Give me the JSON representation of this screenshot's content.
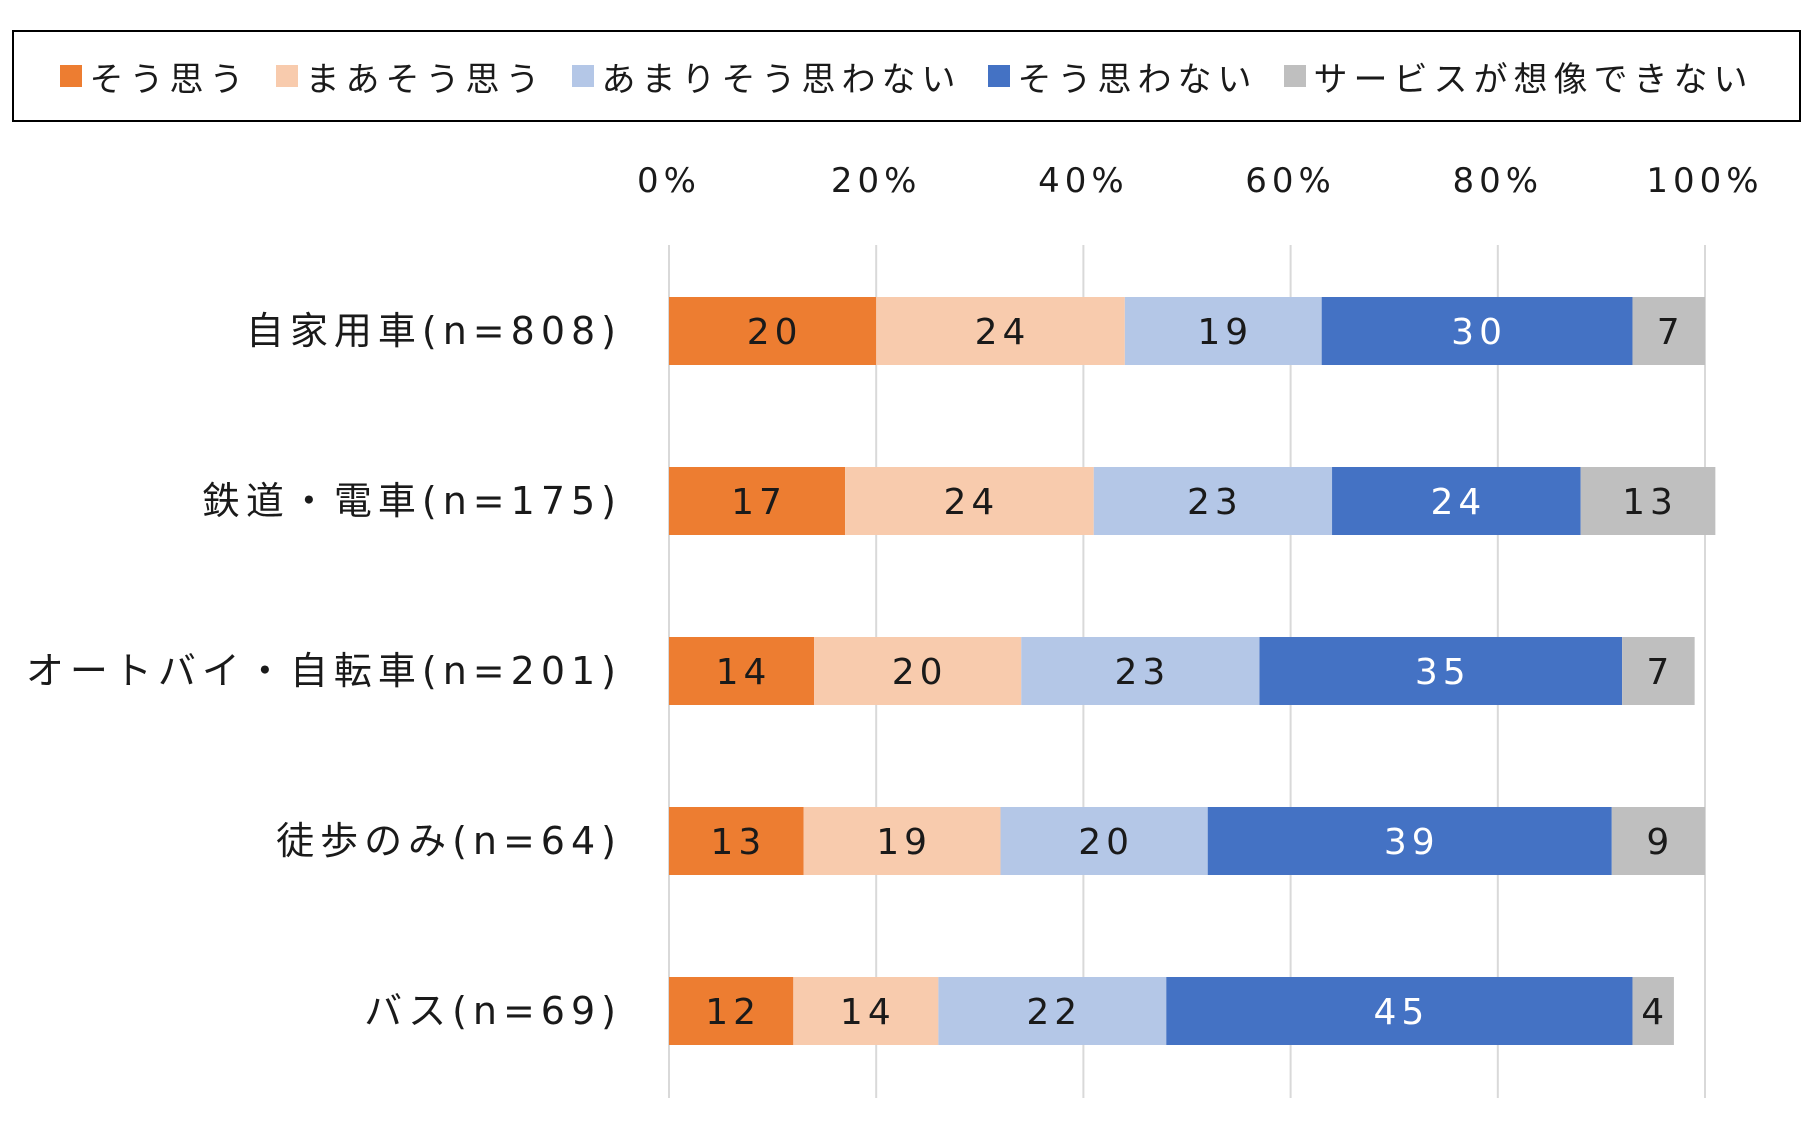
{
  "chart_data": {
    "type": "bar",
    "orientation": "horizontal",
    "stacked": "percent",
    "title": "",
    "xlabel": "",
    "ylabel": "",
    "xlim": [
      0,
      100
    ],
    "x_ticks": [
      "0%",
      "20%",
      "40%",
      "60%",
      "80%",
      "100%"
    ],
    "x_tick_values": [
      0,
      20,
      40,
      60,
      80,
      100
    ],
    "grid": true,
    "legend_position": "top",
    "categories": [
      "自家用車(n=808)",
      "鉄道・電車(n=175)",
      "オートバイ・自転車(n=201)",
      "徒歩のみ(n=64)",
      "バス(n=69)"
    ],
    "series": [
      {
        "name": "そう思う",
        "color": "#ED7D31",
        "label_color": "#1a1a1a",
        "values": [
          20,
          17,
          14,
          13,
          12
        ]
      },
      {
        "name": "まあそう思う",
        "color": "#F8CBAD",
        "label_color": "#1a1a1a",
        "values": [
          24,
          24,
          20,
          19,
          14
        ]
      },
      {
        "name": "あまりそう思わない",
        "color": "#B4C7E7",
        "label_color": "#1a1a1a",
        "values": [
          19,
          23,
          23,
          20,
          22
        ]
      },
      {
        "name": "そう思わない",
        "color": "#4472C4",
        "label_color": "#ffffff",
        "values": [
          30,
          24,
          35,
          39,
          45
        ]
      },
      {
        "name": "サービスが想像できない",
        "color": "#BFBFBF",
        "label_color": "#1a1a1a",
        "values": [
          7,
          13,
          7,
          9,
          4
        ]
      }
    ]
  }
}
